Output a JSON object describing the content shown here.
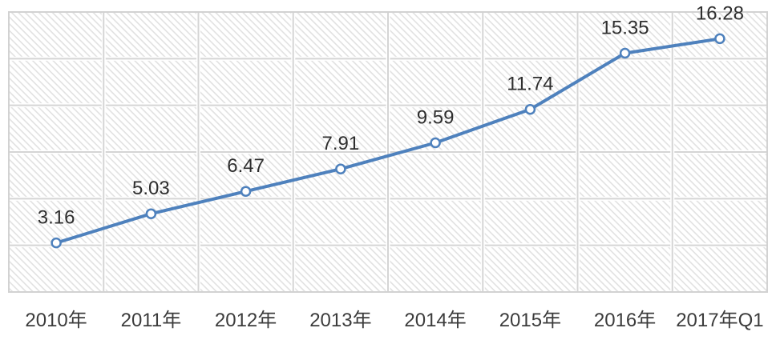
{
  "chart_data": {
    "type": "line",
    "title": "",
    "categories": [
      "2010年",
      "2011年",
      "2012年",
      "2013年",
      "2014年",
      "2015年",
      "2016年",
      "2017年Q1"
    ],
    "values": [
      3.16,
      5.03,
      6.47,
      7.91,
      9.59,
      11.74,
      15.35,
      16.28
    ],
    "data_labels": [
      "3.16",
      "5.03",
      "6.47",
      "7.91",
      "9.59",
      "11.74",
      "15.35",
      "16.28"
    ],
    "xlabel": "",
    "ylabel": "",
    "ylim": [
      0,
      18
    ],
    "y_grid_step": 3,
    "grid": true,
    "legend": false,
    "y_axis_tick_labels_visible": false,
    "plot_background_hatch": true,
    "colors": {
      "line": "#4e81bd",
      "marker_fill": "#ffffff",
      "marker_stroke": "#4e81bd",
      "gridline": "#d5d5d5",
      "plot_border": "#d2d2d2",
      "hatch": "#e1e1e1",
      "plot_background": "#ffffff",
      "data_label_text": "#2e2e2e",
      "axis_label_text": "#3c3c3c"
    }
  }
}
